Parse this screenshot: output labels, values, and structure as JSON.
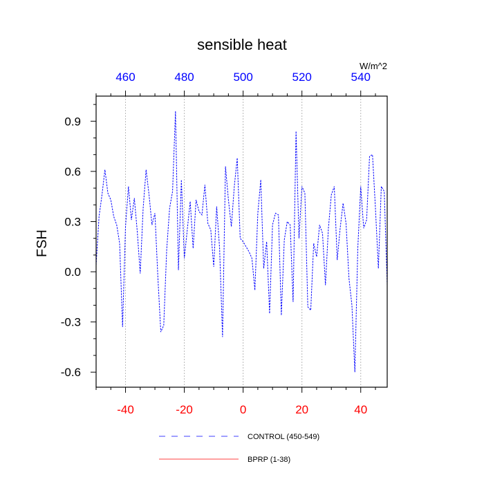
{
  "chart_data": {
    "type": "line",
    "title": "sensible heat",
    "ylabel": "FSH",
    "xlabel": "",
    "top_axis_unit": "W/m^2",
    "x_range": [
      -50,
      49
    ],
    "ylim": [
      -0.69,
      1.05
    ],
    "bottom_axis": {
      "ticks": [
        -40,
        -20,
        0,
        20,
        40
      ],
      "labels": [
        "-40",
        "-20",
        "0",
        "20",
        "40"
      ],
      "color": "#ff0000"
    },
    "top_axis": {
      "ticks": [
        -40,
        -20,
        0,
        20,
        40
      ],
      "labels": [
        "460",
        "480",
        "500",
        "520",
        "540"
      ],
      "color": "#0000ff"
    },
    "y_axis": {
      "ticks": [
        -0.6,
        -0.3,
        0.0,
        0.3,
        0.6,
        0.9
      ],
      "labels": [
        "-0.6",
        "-0.3",
        "0.0",
        "0.3",
        "0.6",
        "0.9"
      ]
    },
    "vertical_gridlines_at": [
      -40,
      -20,
      0,
      20,
      40
    ],
    "series": [
      {
        "name": "CONTROL (450-549)",
        "color": "#0000ff",
        "style": "dashed",
        "x": [
          -50,
          -49,
          -48,
          -47,
          -46,
          -45,
          -44,
          -43,
          -42,
          -41,
          -40,
          -39,
          -38,
          -37,
          -36,
          -35,
          -34,
          -33,
          -32,
          -31,
          -30,
          -29,
          -28,
          -27,
          -26,
          -25,
          -24,
          -23,
          -22,
          -21,
          -20,
          -19,
          -18,
          -17,
          -16,
          -15,
          -14,
          -13,
          -12,
          -11,
          -10,
          -9,
          -8,
          -7,
          -6,
          -5,
          -4,
          -3,
          -2,
          -1,
          0,
          1,
          2,
          3,
          4,
          5,
          6,
          7,
          8,
          9,
          10,
          11,
          12,
          13,
          14,
          15,
          16,
          17,
          18,
          19,
          20,
          21,
          22,
          23,
          24,
          25,
          26,
          27,
          28,
          29,
          30,
          31,
          32,
          33,
          34,
          35,
          36,
          37,
          38,
          39,
          40,
          41,
          42,
          43,
          44,
          45,
          46,
          47,
          48,
          49
        ],
        "y": [
          0.04,
          0.33,
          0.46,
          0.61,
          0.47,
          0.43,
          0.33,
          0.28,
          0.17,
          -0.33,
          0.27,
          0.51,
          0.31,
          0.44,
          0.24,
          -0.01,
          0.38,
          0.61,
          0.46,
          0.28,
          0.35,
          -0.03,
          -0.36,
          -0.32,
          0.13,
          0.38,
          0.48,
          0.96,
          0.01,
          0.55,
          0.08,
          0.25,
          0.42,
          0.14,
          0.43,
          0.36,
          0.34,
          0.52,
          0.29,
          0.25,
          0.03,
          0.39,
          0.14,
          -0.39,
          0.63,
          0.43,
          0.27,
          0.51,
          0.68,
          0.2,
          0.18,
          0.15,
          0.12,
          0.08,
          -0.11,
          0.35,
          0.55,
          0.02,
          0.18,
          -0.25,
          0.28,
          0.35,
          0.34,
          -0.26,
          0.19,
          0.3,
          0.28,
          -0.18,
          0.84,
          0.2,
          0.51,
          0.47,
          -0.21,
          -0.23,
          0.17,
          0.09,
          0.28,
          0.23,
          -0.08,
          0.26,
          0.46,
          0.51,
          0.07,
          0.26,
          0.41,
          0.29,
          -0.04,
          -0.2,
          -0.6,
          0.14,
          0.51,
          0.26,
          0.31,
          0.69,
          0.7,
          0.38,
          0.02,
          0.51,
          0.48,
          -0.08
        ]
      },
      {
        "name": "BPRP (1-38)",
        "color": "#ff0000",
        "style": "solid",
        "x": [],
        "y": []
      }
    ],
    "legend": {
      "placement": "bottom"
    }
  }
}
